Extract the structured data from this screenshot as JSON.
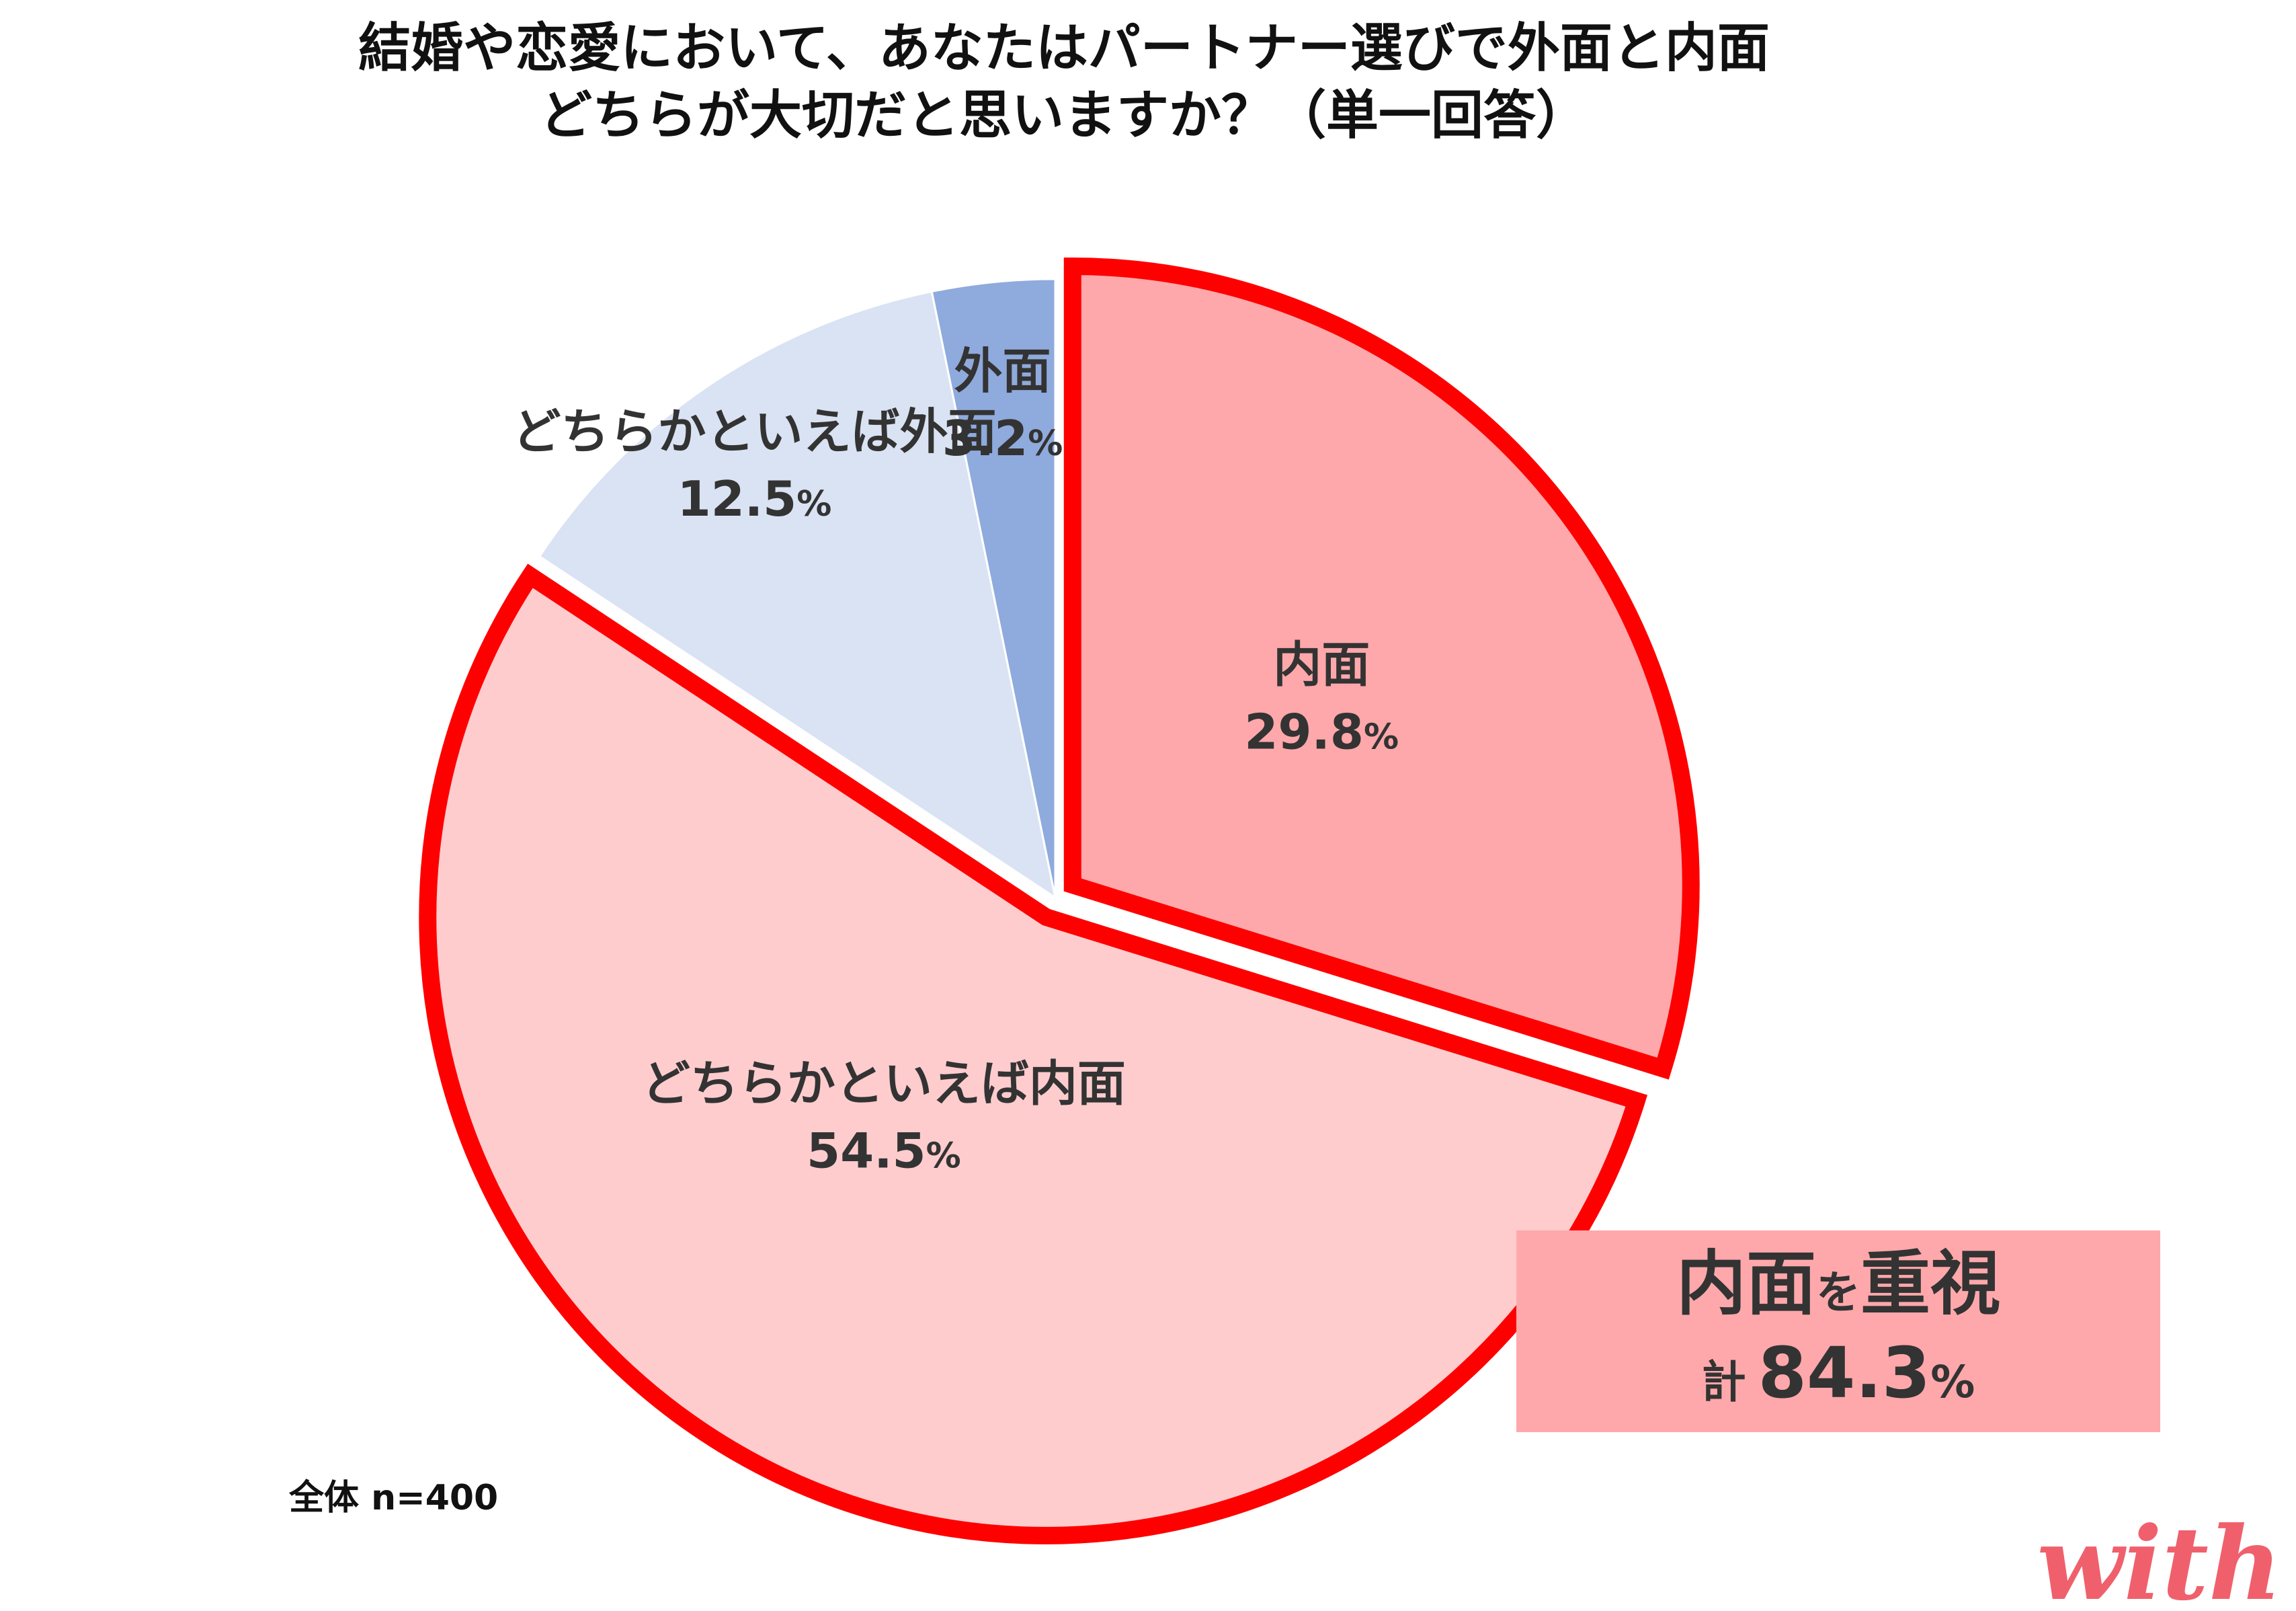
{
  "title_lines": [
    "結婚や恋愛において、あなたはパートナー選びで外面と内面",
    "どちらが大切だと思いますか？（単一回答）"
  ],
  "chart_data": {
    "type": "pie",
    "title": "結婚や恋愛において、あなたはパートナー選びで外面と内面どちらが大切だと思いますか？（単一回答）",
    "slices": [
      {
        "label": "内面",
        "value": 29.8,
        "display": "29.8",
        "color": "#ffa8ab",
        "highlight": true,
        "exploded": true
      },
      {
        "label": "どちらかといえば内面",
        "value": 54.5,
        "display": "54.5",
        "color": "#ffccce",
        "highlight": true,
        "exploded": true
      },
      {
        "label": "どちらかといえば外面",
        "value": 12.5,
        "display": "12.5",
        "color": "#dae3f3",
        "highlight": false,
        "exploded": false
      },
      {
        "label": "外面",
        "value": 3.2,
        "display": "3.2",
        "color": "#8faadc",
        "highlight": false,
        "exploded": false
      }
    ],
    "percent_sign": "%",
    "start_angle_deg": 0,
    "direction": "clockwise",
    "highlight_stroke": "#ff0000",
    "legend": "none"
  },
  "sample_note": "全体 n=400",
  "callout": {
    "title_a": "内面",
    "title_b": "を",
    "title_c": "重視",
    "total_label": "計",
    "total_value": "84.3",
    "percent_sign": "%",
    "background": "#ffa8ab"
  },
  "logo": {
    "text": "with",
    "color": "#f0606c"
  }
}
